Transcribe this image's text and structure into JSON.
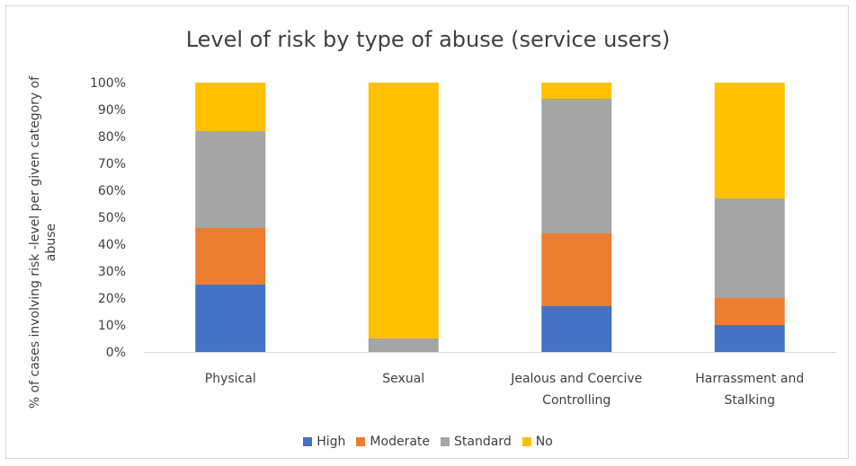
{
  "chart_data": {
    "type": "bar",
    "stacked": true,
    "title": "Level of risk by type of abuse (service users)",
    "ylabel": "% of cases involving risk -level per given category of abuse",
    "xlabel": "",
    "ylim": [
      0,
      100
    ],
    "y_ticks": [
      "0%",
      "10%",
      "20%",
      "30%",
      "40%",
      "50%",
      "60%",
      "70%",
      "80%",
      "90%",
      "100%"
    ],
    "categories": [
      [
        "Physical"
      ],
      [
        "Sexual"
      ],
      [
        "Jealous and Coercive",
        "Controlling"
      ],
      [
        "Harrassment and",
        "Stalking"
      ]
    ],
    "series": [
      {
        "name": "High",
        "color": "#4472c4",
        "values": [
          25,
          0,
          17,
          10
        ]
      },
      {
        "name": "Moderate",
        "color": "#ed7d31",
        "values": [
          21,
          0,
          27,
          10
        ]
      },
      {
        "name": "Standard",
        "color": "#a5a5a5",
        "values": [
          36,
          5,
          50,
          37
        ]
      },
      {
        "name": "No",
        "color": "#ffc000",
        "values": [
          18,
          95,
          6,
          43
        ]
      }
    ],
    "grid": false,
    "legend_position": "bottom"
  }
}
